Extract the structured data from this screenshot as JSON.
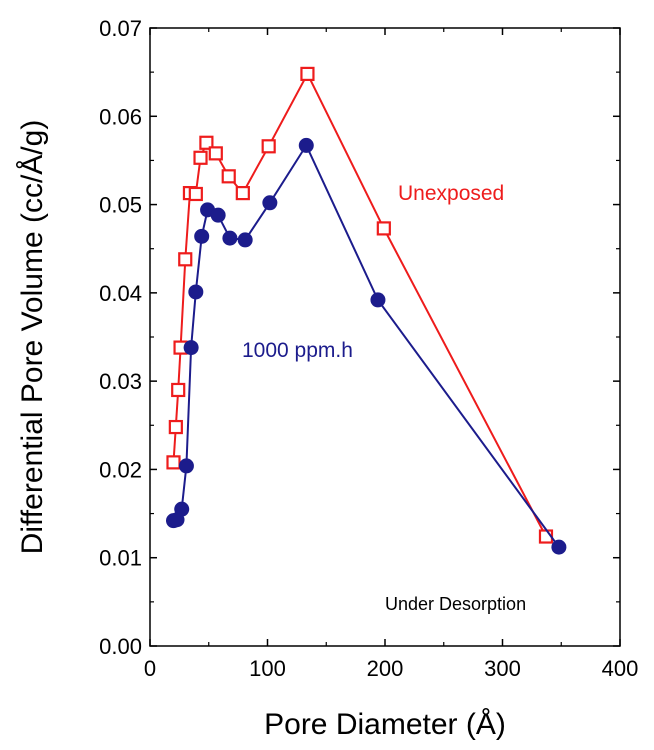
{
  "chart_data": {
    "type": "line",
    "title": "",
    "xlabel": "Pore Diameter (Å)",
    "ylabel": "Differential Pore Volume (cc/Å/g)",
    "xlim": [
      0,
      400
    ],
    "ylim": [
      0.0,
      0.07
    ],
    "x_ticks": [
      "0",
      "100",
      "200",
      "300",
      "400"
    ],
    "y_ticks": [
      "0.00",
      "0.01",
      "0.02",
      "0.03",
      "0.04",
      "0.05",
      "0.06",
      "0.07"
    ],
    "grid": false,
    "series": [
      {
        "name": "Unexposed",
        "color": "#ee1c1c",
        "marker": "open-square",
        "points": [
          [
            20,
            0.0208
          ],
          [
            22,
            0.0248
          ],
          [
            24,
            0.029
          ],
          [
            26,
            0.0338
          ],
          [
            30,
            0.0438
          ],
          [
            34,
            0.0513
          ],
          [
            39,
            0.0512
          ],
          [
            43,
            0.0553
          ],
          [
            48,
            0.057
          ],
          [
            56,
            0.0558
          ],
          [
            67,
            0.0532
          ],
          [
            79,
            0.0513
          ],
          [
            101,
            0.0566
          ],
          [
            134,
            0.0648
          ],
          [
            199,
            0.0473
          ],
          [
            337,
            0.0124
          ]
        ]
      },
      {
        "name": "1000 ppm.h",
        "color": "#1c1c8c",
        "marker": "filled-circle",
        "points": [
          [
            20,
            0.0142
          ],
          [
            23,
            0.0143
          ],
          [
            27,
            0.0155
          ],
          [
            31,
            0.0204
          ],
          [
            35,
            0.0338
          ],
          [
            39,
            0.0401
          ],
          [
            44,
            0.0464
          ],
          [
            49,
            0.0494
          ],
          [
            58,
            0.0488
          ],
          [
            68,
            0.0462
          ],
          [
            81,
            0.046
          ],
          [
            102,
            0.0502
          ],
          [
            133,
            0.0567
          ],
          [
            194,
            0.0392
          ],
          [
            348,
            0.0112
          ]
        ]
      }
    ],
    "annotations": [
      "Under Desorption"
    ]
  }
}
